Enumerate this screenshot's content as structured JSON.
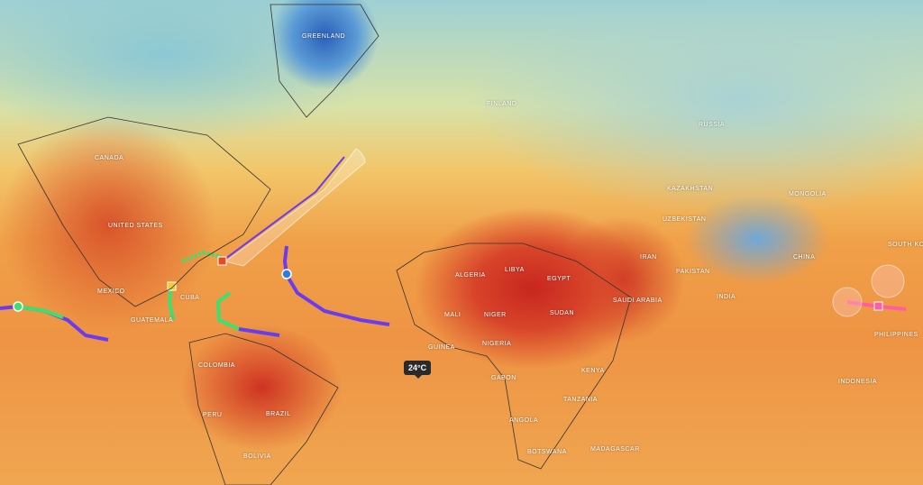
{
  "map": {
    "layer": "temperature",
    "colors": {
      "hot": "#c8261e",
      "warm": "#f0a048",
      "cool": "#9fd0d4",
      "cold": "#2b5fb8",
      "track_purple": "#6a3cf0",
      "track_green": "#3ce070",
      "track_blue": "#2f7de0"
    }
  },
  "labels": [
    "Greenland",
    "Canada",
    "United States",
    "Mexico",
    "Cuba",
    "Guatemala",
    "Colombia",
    "Peru",
    "Brazil",
    "Bolivia",
    "Algeria",
    "Mali",
    "Niger",
    "Egypt",
    "Sudan",
    "Libya",
    "Nigeria",
    "Guinea",
    "Gabon",
    "Kenya",
    "Tanzania",
    "Angola",
    "Botswana",
    "Madagascar",
    "Saudi Arabia",
    "Iran",
    "Pakistan",
    "India",
    "China",
    "Mongolia",
    "Kazakhstan",
    "Uzbekistan",
    "Russia",
    "Finland",
    "South Korea",
    "Philippines",
    "Indonesia"
  ],
  "tooltip": {
    "temperature": "24°C"
  }
}
